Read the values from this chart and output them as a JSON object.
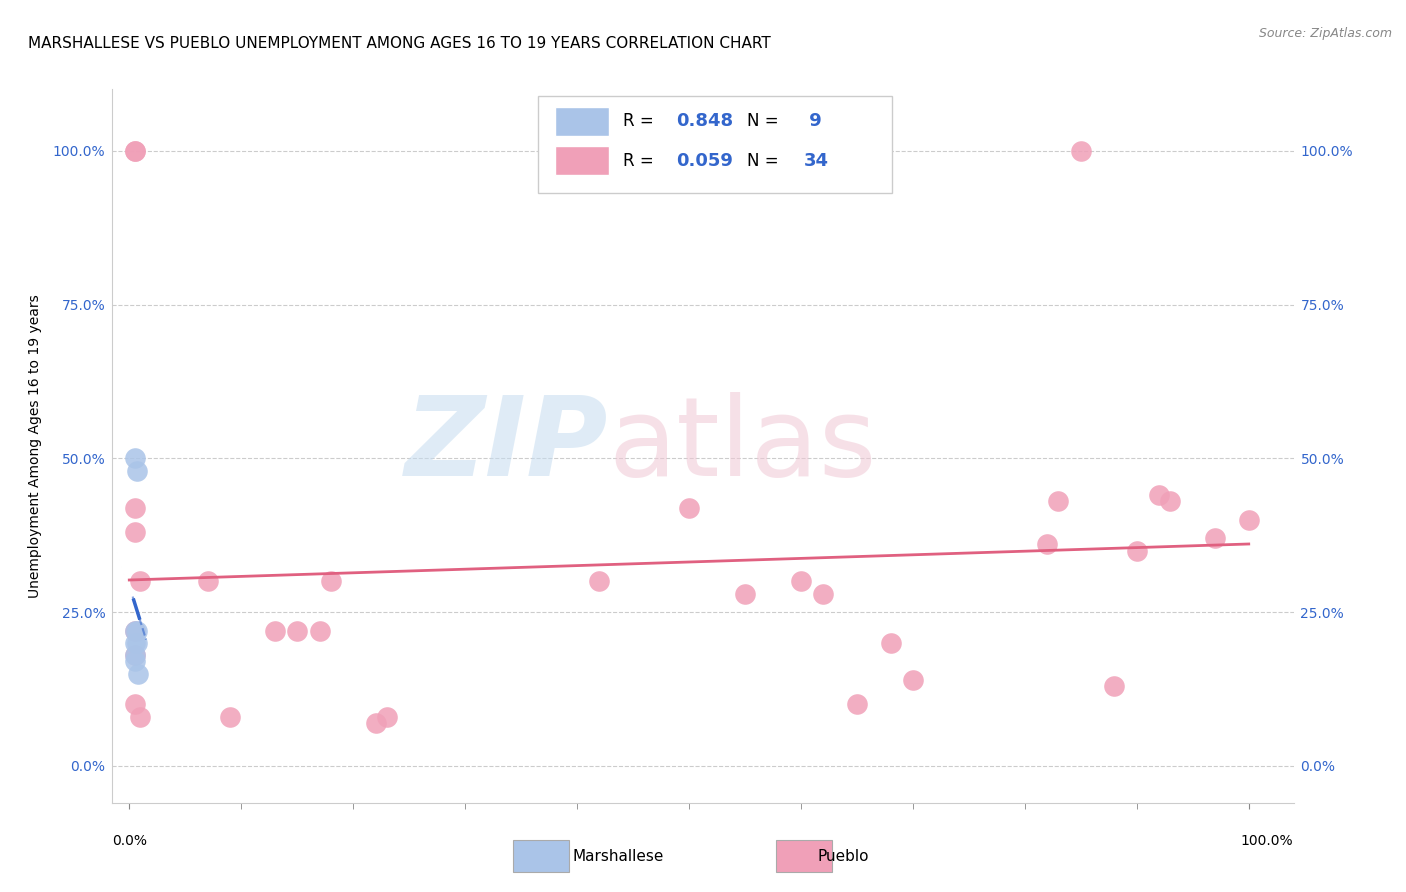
{
  "title": "MARSHALLESE VS PUEBLO UNEMPLOYMENT AMONG AGES 16 TO 19 YEARS CORRELATION CHART",
  "source": "Source: ZipAtlas.com",
  "ylabel": "Unemployment Among Ages 16 to 19 years",
  "marshallese_x": [
    0.005,
    0.005,
    0.005,
    0.005,
    0.005,
    0.007,
    0.007,
    0.007,
    0.008
  ],
  "marshallese_y": [
    0.5,
    0.22,
    0.2,
    0.18,
    0.17,
    0.48,
    0.22,
    0.2,
    0.15
  ],
  "pueblo_x": [
    0.005,
    0.005,
    0.005,
    0.005,
    0.01,
    0.01,
    0.07,
    0.09,
    0.13,
    0.15,
    0.17,
    0.18,
    0.22,
    0.23,
    0.42,
    0.5,
    0.55,
    0.6,
    0.62,
    0.65,
    0.68,
    0.7,
    0.82,
    0.83,
    0.85,
    0.88,
    0.9,
    0.92,
    0.93,
    0.97,
    1.0,
    0.005,
    0.005,
    0.005
  ],
  "pueblo_y": [
    1.0,
    1.0,
    0.42,
    0.38,
    0.3,
    0.08,
    0.3,
    0.08,
    0.22,
    0.22,
    0.22,
    0.3,
    0.07,
    0.08,
    0.3,
    0.42,
    0.28,
    0.3,
    0.28,
    0.1,
    0.2,
    0.14,
    0.36,
    0.43,
    1.0,
    0.13,
    0.35,
    0.44,
    0.43,
    0.37,
    0.4,
    0.22,
    0.18,
    0.1
  ],
  "marshallese_color": "#aac4e8",
  "pueblo_color": "#f0a0b8",
  "marshallese_line_color": "#3366cc",
  "pueblo_line_color": "#e06080",
  "R_marshallese": 0.848,
  "N_marshallese": 9,
  "R_pueblo": 0.059,
  "N_pueblo": 34,
  "xlim": [
    0.0,
    1.0
  ],
  "ylim": [
    0.0,
    1.0
  ],
  "yticks": [
    0.0,
    0.25,
    0.5,
    0.75,
    1.0
  ],
  "ytick_labels": [
    "0.0%",
    "25.0%",
    "50.0%",
    "75.0%",
    "100.0%"
  ],
  "xtick_labels": [
    "0.0%",
    "100.0%"
  ]
}
